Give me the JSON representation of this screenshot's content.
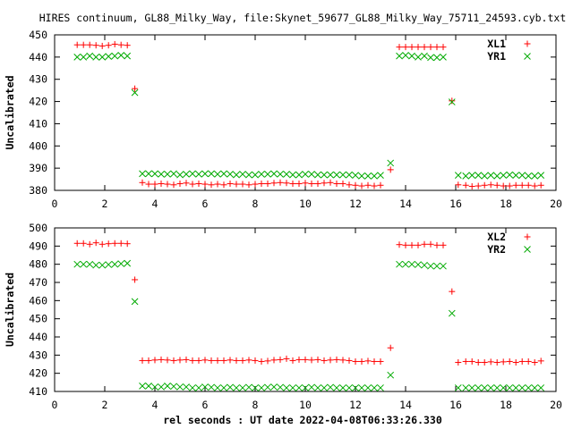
{
  "title": "HIRES continuum, GL88_Milky_Way, file:Skynet_59677_GL88_Milky_Way_75711_24593.cyb.txt",
  "xlabel": "rel seconds : UT date 2022-04-08T06:33:26.330",
  "colors": {
    "red": "#ff0000",
    "green": "#00aa00",
    "axis": "#000000"
  },
  "chart_data": [
    {
      "type": "scatter",
      "ylabel": "Uncalibrated",
      "xlim": [
        0,
        20
      ],
      "ylim": [
        380,
        450
      ],
      "xticks": [
        0,
        2,
        4,
        6,
        8,
        10,
        12,
        14,
        16,
        18,
        20
      ],
      "yticks": [
        380,
        390,
        400,
        410,
        420,
        430,
        440,
        450
      ],
      "legend": "top-right",
      "series": [
        {
          "name": "XL1",
          "marker": "plus",
          "color": "#ff0000",
          "x": [
            0.9,
            1.15,
            1.4,
            1.65,
            1.9,
            2.15,
            2.4,
            2.65,
            2.9,
            3.2,
            3.5,
            3.75,
            4.0,
            4.25,
            4.5,
            4.75,
            5.0,
            5.25,
            5.5,
            5.75,
            6.0,
            6.25,
            6.5,
            6.75,
            7.0,
            7.25,
            7.5,
            7.75,
            8.0,
            8.25,
            8.5,
            8.75,
            9.0,
            9.25,
            9.5,
            9.75,
            10.0,
            10.25,
            10.5,
            10.75,
            11.0,
            11.25,
            11.5,
            11.75,
            12.0,
            12.25,
            12.5,
            12.75,
            13.0,
            13.4,
            13.75,
            14.0,
            14.25,
            14.5,
            14.75,
            15.0,
            15.25,
            15.5,
            15.85,
            16.1,
            16.4,
            16.65,
            16.9,
            17.15,
            17.4,
            17.65,
            17.9,
            18.15,
            18.4,
            18.65,
            18.9,
            19.15,
            19.4
          ],
          "y": [
            445.5,
            445.5,
            445.5,
            445.3,
            445.0,
            445.3,
            445.8,
            445.5,
            445.3,
            425.8,
            383.5,
            382.8,
            382.8,
            383.0,
            382.8,
            382.5,
            383.0,
            383.3,
            382.8,
            383.0,
            382.8,
            382.5,
            382.8,
            382.5,
            383.0,
            382.8,
            382.8,
            382.5,
            382.8,
            383.0,
            383.0,
            383.3,
            383.5,
            383.3,
            383.0,
            383.0,
            383.3,
            383.0,
            383.0,
            383.3,
            383.5,
            383.0,
            383.0,
            382.5,
            382.3,
            382.0,
            382.3,
            382.0,
            382.3,
            389.3,
            444.5,
            444.5,
            444.5,
            444.5,
            444.5,
            444.5,
            444.5,
            444.5,
            420.3,
            382.5,
            382.3,
            381.8,
            382.0,
            382.3,
            382.5,
            382.3,
            382.0,
            382.0,
            382.3,
            382.3,
            382.3,
            382.0,
            382.3
          ]
        },
        {
          "name": "YR1",
          "marker": "cross",
          "color": "#00aa00",
          "x": [
            0.9,
            1.15,
            1.4,
            1.65,
            1.9,
            2.15,
            2.4,
            2.65,
            2.9,
            3.2,
            3.5,
            3.75,
            4.0,
            4.25,
            4.5,
            4.75,
            5.0,
            5.25,
            5.5,
            5.75,
            6.0,
            6.25,
            6.5,
            6.75,
            7.0,
            7.25,
            7.5,
            7.75,
            8.0,
            8.25,
            8.5,
            8.75,
            9.0,
            9.25,
            9.5,
            9.75,
            10.0,
            10.25,
            10.5,
            10.75,
            11.0,
            11.25,
            11.5,
            11.75,
            12.0,
            12.25,
            12.5,
            12.75,
            13.0,
            13.4,
            13.75,
            14.0,
            14.25,
            14.5,
            14.75,
            15.0,
            15.25,
            15.5,
            15.85,
            16.1,
            16.4,
            16.65,
            16.9,
            17.15,
            17.4,
            17.65,
            17.9,
            18.15,
            18.4,
            18.65,
            18.9,
            19.15,
            19.4
          ],
          "y": [
            440.0,
            440.0,
            440.5,
            440.0,
            440.0,
            440.3,
            440.5,
            440.8,
            440.5,
            424.0,
            387.5,
            387.5,
            387.5,
            387.3,
            387.3,
            387.5,
            387.0,
            387.3,
            387.5,
            387.3,
            387.5,
            387.5,
            387.3,
            387.5,
            387.3,
            387.0,
            387.3,
            387.0,
            387.0,
            387.3,
            387.3,
            387.5,
            387.3,
            387.3,
            387.0,
            387.0,
            387.3,
            387.3,
            387.0,
            387.0,
            387.0,
            387.0,
            387.0,
            387.0,
            386.8,
            386.5,
            386.5,
            386.5,
            386.8,
            392.3,
            440.5,
            440.8,
            440.5,
            440.0,
            440.5,
            439.8,
            439.8,
            440.0,
            419.8,
            386.8,
            386.5,
            386.8,
            386.8,
            386.5,
            386.8,
            386.5,
            386.8,
            387.0,
            386.8,
            386.8,
            386.5,
            386.5,
            386.8
          ]
        }
      ]
    },
    {
      "type": "scatter",
      "ylabel": "Uncalibrated",
      "xlim": [
        0,
        20
      ],
      "ylim": [
        410,
        500
      ],
      "xticks": [
        0,
        2,
        4,
        6,
        8,
        10,
        12,
        14,
        16,
        18,
        20
      ],
      "yticks": [
        410,
        420,
        430,
        440,
        450,
        460,
        470,
        480,
        490,
        500
      ],
      "legend": "top-right",
      "series": [
        {
          "name": "XL2",
          "marker": "plus",
          "color": "#ff0000",
          "x": [
            0.9,
            1.15,
            1.4,
            1.65,
            1.9,
            2.15,
            2.4,
            2.65,
            2.9,
            3.2,
            3.5,
            3.75,
            4.0,
            4.25,
            4.5,
            4.75,
            5.0,
            5.25,
            5.5,
            5.75,
            6.0,
            6.25,
            6.5,
            6.75,
            7.0,
            7.25,
            7.5,
            7.75,
            8.0,
            8.25,
            8.5,
            8.75,
            9.0,
            9.25,
            9.5,
            9.75,
            10.0,
            10.25,
            10.5,
            10.75,
            11.0,
            11.25,
            11.5,
            11.75,
            12.0,
            12.25,
            12.5,
            12.75,
            13.0,
            13.4,
            13.75,
            14.0,
            14.25,
            14.5,
            14.75,
            15.0,
            15.25,
            15.5,
            15.85,
            16.1,
            16.4,
            16.65,
            16.9,
            17.15,
            17.4,
            17.65,
            17.9,
            18.15,
            18.4,
            18.65,
            18.9,
            19.15,
            19.4
          ],
          "y": [
            491.5,
            491.5,
            491.0,
            491.8,
            491.0,
            491.3,
            491.5,
            491.5,
            491.3,
            471.5,
            427.0,
            427.0,
            427.3,
            427.5,
            427.3,
            427.0,
            427.3,
            427.5,
            427.0,
            427.0,
            427.3,
            427.0,
            427.0,
            427.0,
            427.3,
            427.0,
            427.0,
            427.3,
            427.0,
            426.5,
            426.8,
            427.3,
            427.5,
            428.0,
            427.0,
            427.5,
            427.5,
            427.3,
            427.5,
            427.0,
            427.3,
            427.5,
            427.3,
            427.0,
            426.5,
            426.5,
            426.8,
            426.5,
            426.5,
            434.0,
            490.8,
            490.5,
            490.5,
            490.5,
            491.0,
            491.0,
            490.5,
            490.5,
            465.0,
            426.0,
            426.5,
            426.5,
            426.0,
            426.0,
            426.3,
            426.0,
            426.3,
            426.5,
            426.0,
            426.5,
            426.5,
            426.0,
            426.8
          ]
        },
        {
          "name": "YR2",
          "marker": "cross",
          "color": "#00aa00",
          "x": [
            0.9,
            1.15,
            1.4,
            1.65,
            1.9,
            2.15,
            2.4,
            2.65,
            2.9,
            3.2,
            3.5,
            3.75,
            4.0,
            4.25,
            4.5,
            4.75,
            5.0,
            5.25,
            5.5,
            5.75,
            6.0,
            6.25,
            6.5,
            6.75,
            7.0,
            7.25,
            7.5,
            7.75,
            8.0,
            8.25,
            8.5,
            8.75,
            9.0,
            9.25,
            9.5,
            9.75,
            10.0,
            10.25,
            10.5,
            10.75,
            11.0,
            11.25,
            11.5,
            11.75,
            12.0,
            12.25,
            12.5,
            12.75,
            13.0,
            13.4,
            13.75,
            14.0,
            14.25,
            14.5,
            14.75,
            15.0,
            15.25,
            15.5,
            15.85,
            16.1,
            16.4,
            16.65,
            16.9,
            17.15,
            17.4,
            17.65,
            17.9,
            18.15,
            18.4,
            18.65,
            18.9,
            19.15,
            19.4
          ],
          "y": [
            480.0,
            480.0,
            480.0,
            479.5,
            479.5,
            479.8,
            480.0,
            480.3,
            480.5,
            459.5,
            413.0,
            413.0,
            412.5,
            412.5,
            413.0,
            412.8,
            412.5,
            412.5,
            412.0,
            412.0,
            412.5,
            412.3,
            412.0,
            412.0,
            412.3,
            412.0,
            412.0,
            412.3,
            412.0,
            412.0,
            412.3,
            412.5,
            412.3,
            412.0,
            412.0,
            412.0,
            412.0,
            412.3,
            412.0,
            412.0,
            412.3,
            412.0,
            412.0,
            412.0,
            412.0,
            412.0,
            412.0,
            412.0,
            412.0,
            419.0,
            480.0,
            480.0,
            480.0,
            479.8,
            479.5,
            479.0,
            479.0,
            479.0,
            453.0,
            412.0,
            412.0,
            412.0,
            412.0,
            412.0,
            412.0,
            412.0,
            412.0,
            412.0,
            412.0,
            412.0,
            412.0,
            412.0,
            412.0
          ]
        }
      ]
    }
  ]
}
